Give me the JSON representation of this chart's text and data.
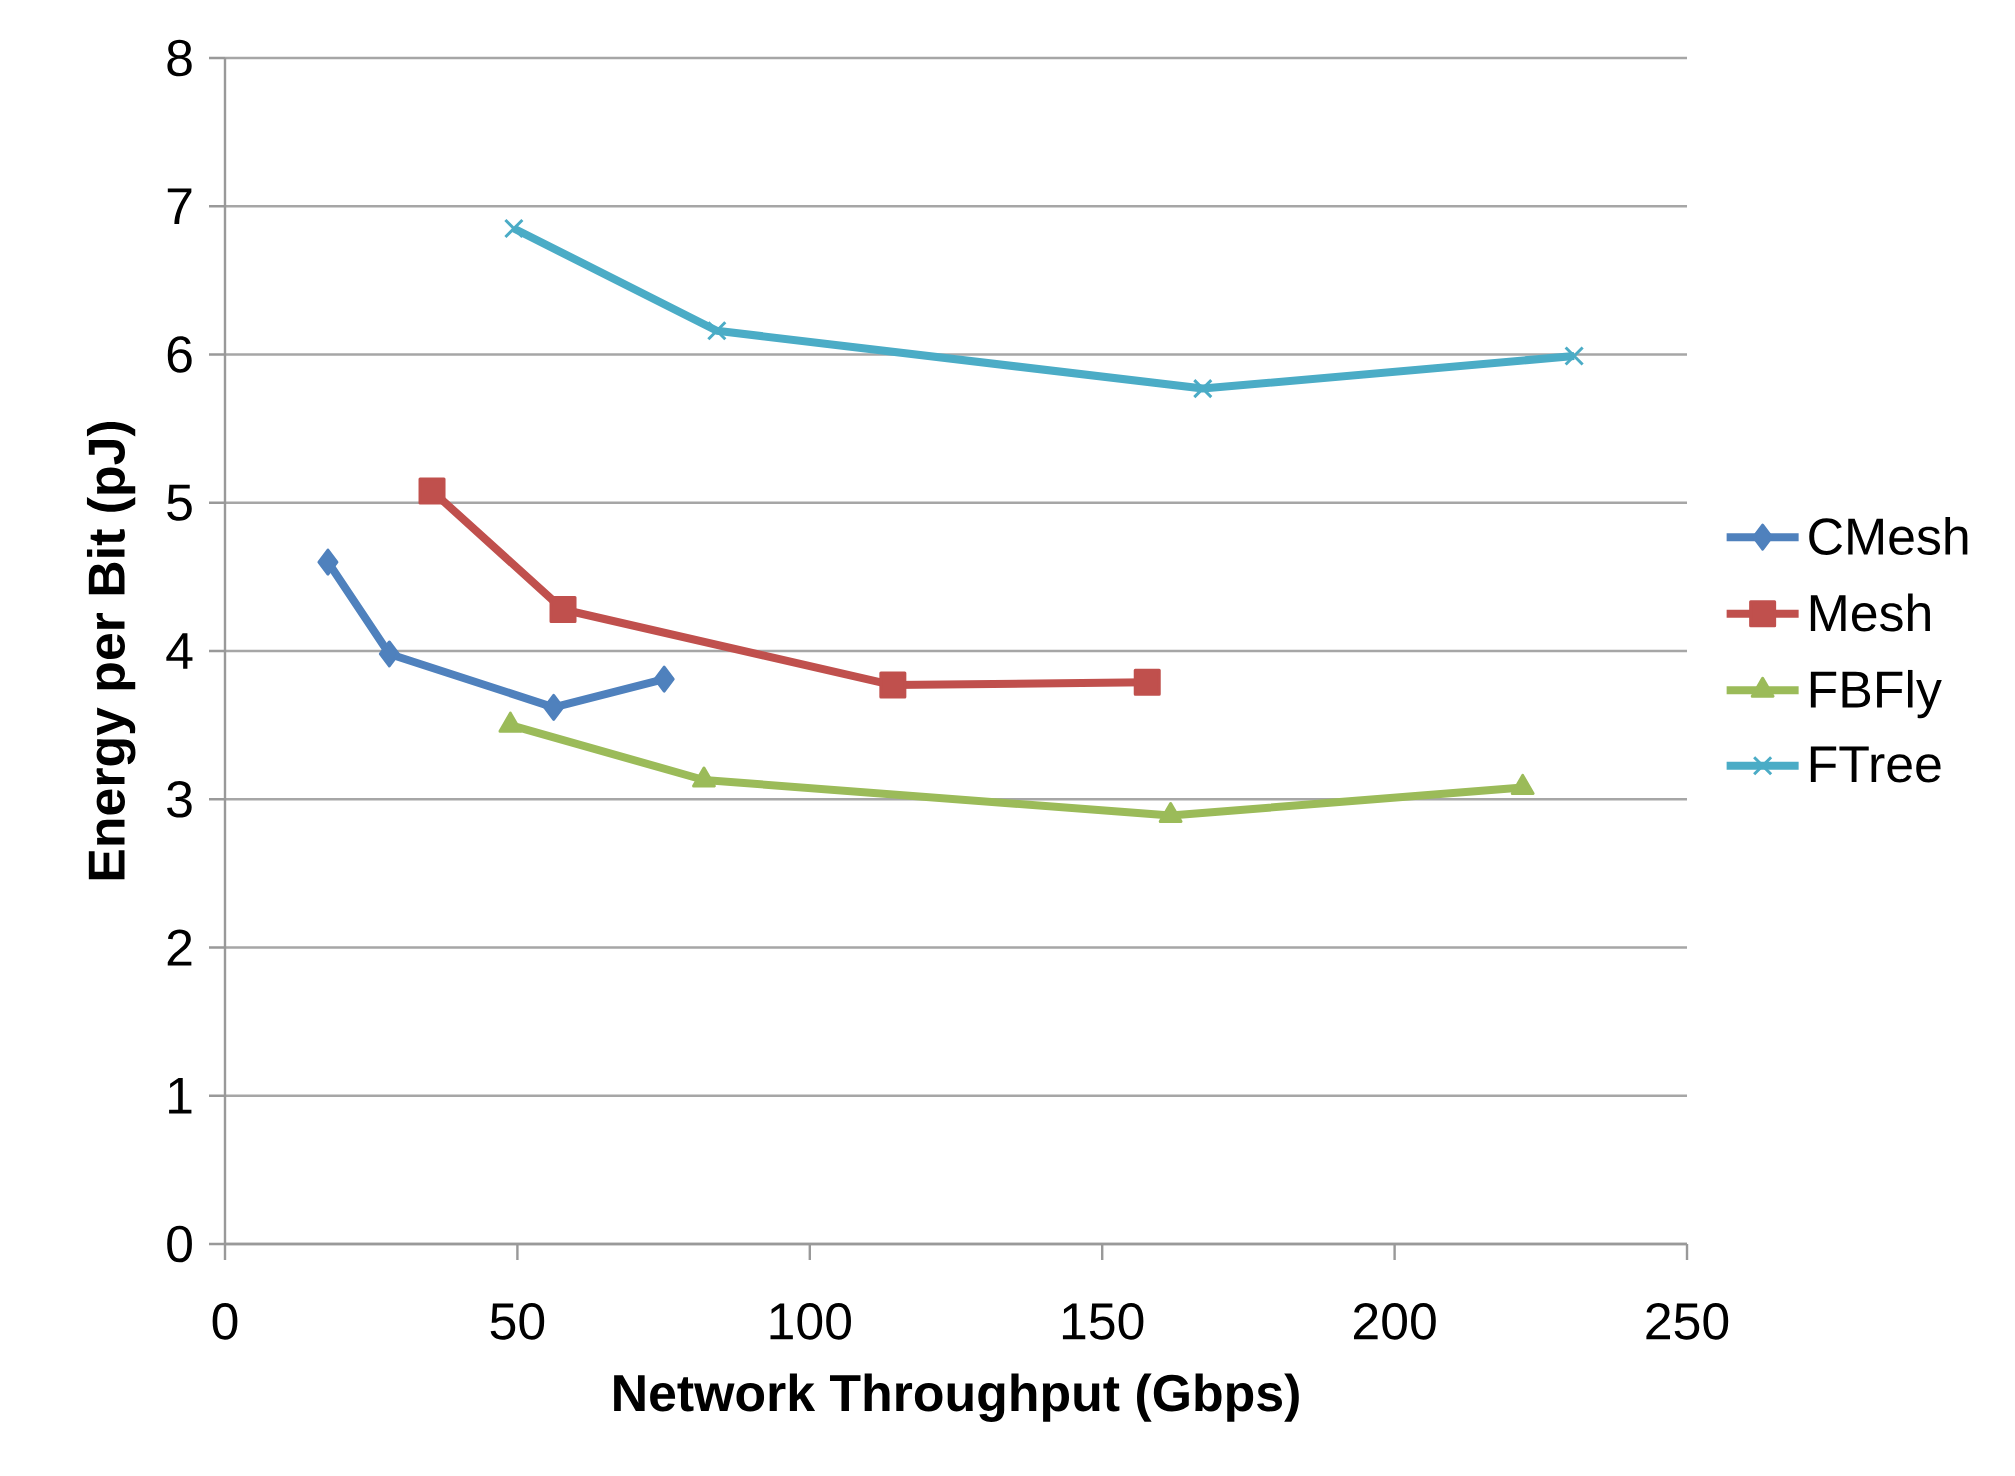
{
  "chart_data": {
    "type": "line",
    "xlabel": "Network Throughput (Gbps)",
    "ylabel": "Energy per Bit (pJ)",
    "xlim": [
      0,
      250
    ],
    "xticks": [
      0,
      50,
      100,
      150,
      200,
      250
    ],
    "ylim": [
      0,
      8
    ],
    "yticks": [
      0,
      1,
      2,
      3,
      4,
      5,
      6,
      7,
      8
    ],
    "grid": "y",
    "legend": "right",
    "series": [
      {
        "name": "CMesh",
        "color": "#4f81bd",
        "marker": "diamond",
        "x": [
          17.6,
          28.1,
          56.2,
          75.1
        ],
        "values": [
          4.6,
          3.98,
          3.62,
          3.81
        ]
      },
      {
        "name": "Mesh",
        "color": "#c0504d",
        "marker": "square",
        "x": [
          35.4,
          57.8,
          114.2,
          157.7
        ],
        "values": [
          5.08,
          4.28,
          3.77,
          3.79
        ]
      },
      {
        "name": "FBFly",
        "color": "#9bbb59",
        "marker": "triangle",
        "x": [
          48.8,
          81.9,
          161.7,
          221.9
        ],
        "values": [
          3.5,
          3.13,
          2.89,
          3.08
        ]
      },
      {
        "name": "FTree",
        "color": "#4bacc6",
        "marker": "cross",
        "x": [
          49.4,
          84.1,
          167.2,
          230.7
        ],
        "values": [
          6.85,
          6.16,
          5.77,
          5.99
        ]
      }
    ]
  }
}
